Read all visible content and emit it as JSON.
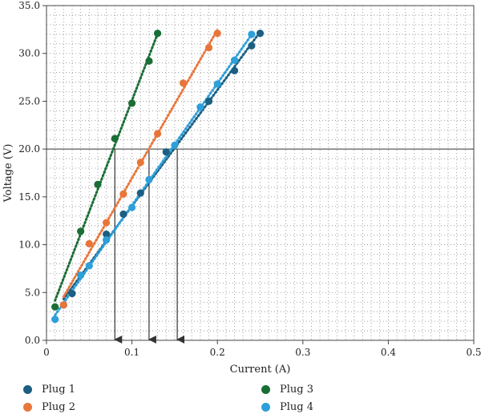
{
  "chart_data": {
    "type": "scatter",
    "xlabel": "Current (A)",
    "ylabel": "Voltage (V)",
    "xlim": [
      0,
      0.5
    ],
    "ylim": [
      0,
      35
    ],
    "xticks": [
      "0",
      "0.1",
      "0.2",
      "0.3",
      "0.4",
      "0.5"
    ],
    "yticks": [
      "0.0",
      "5.0",
      "10.0",
      "15.0",
      "20.0",
      "25.0",
      "30.0",
      "35.0"
    ],
    "grid": "dotted",
    "legend_position": "bottom",
    "trendlines": "dotted linear",
    "reference_line": {
      "y": 20,
      "drop_arrows_x": [
        0.08,
        0.12,
        0.153
      ]
    },
    "series": [
      {
        "name": "Plug 1",
        "color": "#1b5f82",
        "points": [
          [
            0.02,
            3.7
          ],
          [
            0.03,
            4.9
          ],
          [
            0.07,
            11.1
          ],
          [
            0.09,
            13.2
          ],
          [
            0.11,
            15.4
          ],
          [
            0.14,
            19.7
          ],
          [
            0.19,
            25.0
          ],
          [
            0.22,
            28.2
          ],
          [
            0.24,
            30.8
          ],
          [
            0.25,
            32.1
          ]
        ]
      },
      {
        "name": "Plug 2",
        "color": "#e8763a",
        "points": [
          [
            0.02,
            3.7
          ],
          [
            0.05,
            10.1
          ],
          [
            0.07,
            12.3
          ],
          [
            0.09,
            15.3
          ],
          [
            0.11,
            18.6
          ],
          [
            0.13,
            21.6
          ],
          [
            0.16,
            26.9
          ],
          [
            0.19,
            30.6
          ],
          [
            0.2,
            32.1
          ]
        ]
      },
      {
        "name": "Plug 3",
        "color": "#1a6e35",
        "points": [
          [
            0.01,
            3.5
          ],
          [
            0.04,
            11.4
          ],
          [
            0.06,
            16.3
          ],
          [
            0.08,
            21.1
          ],
          [
            0.1,
            24.8
          ],
          [
            0.12,
            29.2
          ],
          [
            0.13,
            32.1
          ]
        ]
      },
      {
        "name": "Plug 4",
        "color": "#2d9fd9",
        "points": [
          [
            0.01,
            2.2
          ],
          [
            0.04,
            6.8
          ],
          [
            0.05,
            7.8
          ],
          [
            0.07,
            10.5
          ],
          [
            0.1,
            13.9
          ],
          [
            0.12,
            16.8
          ],
          [
            0.15,
            20.4
          ],
          [
            0.18,
            24.4
          ],
          [
            0.2,
            26.8
          ],
          [
            0.22,
            29.3
          ],
          [
            0.24,
            32.0
          ]
        ]
      }
    ]
  }
}
